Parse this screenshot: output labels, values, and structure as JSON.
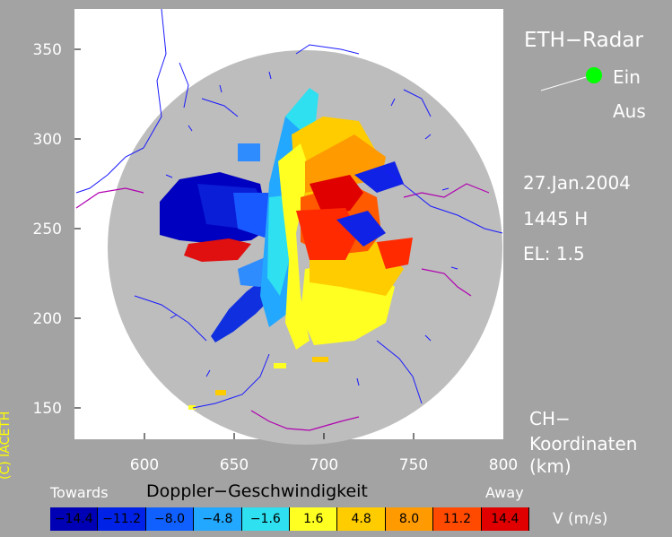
{
  "title": "ETH−Radar",
  "status": {
    "on_label": "Ein",
    "off_label": "Aus",
    "active": "Ein",
    "on_color": "#00ff00"
  },
  "date": "27.Jan.2004",
  "time": "1445 H",
  "elevation": "EL: 1.5",
  "coords_label_1": "CH−",
  "coords_label_2": "Koordinaten",
  "coords_label_3": "(km)",
  "x_ticks": [
    "600",
    "650",
    "700",
    "750",
    "800"
  ],
  "y_ticks": [
    "350",
    "300",
    "250",
    "200",
    "150"
  ],
  "legend": {
    "title": "Doppler−Geschwindigkeit",
    "left_label": "Towards",
    "right_label": "Away",
    "unit": "V   (m/s)",
    "bins": [
      {
        "label": "−14.4",
        "color": "#0000b4"
      },
      {
        "label": "−11.2",
        "color": "#0022e6"
      },
      {
        "label": "−8.0",
        "color": "#1060ff"
      },
      {
        "label": "−4.8",
        "color": "#22a8ff"
      },
      {
        "label": "−1.6",
        "color": "#2ee0f0"
      },
      {
        "label": "1.6",
        "color": "#ffff22"
      },
      {
        "label": "4.8",
        "color": "#ffcc00"
      },
      {
        "label": "8.0",
        "color": "#ff9a00"
      },
      {
        "label": "11.2",
        "color": "#ff4a00"
      },
      {
        "label": "14.4",
        "color": "#e00000"
      }
    ]
  },
  "copyright": "(C) IACETH",
  "colors": {
    "background": "#a3a3a3",
    "plot_bg": "#ffffff",
    "disc": "#bdbdbd",
    "rivers": "#1a1aff",
    "borders": "#b000b0"
  }
}
